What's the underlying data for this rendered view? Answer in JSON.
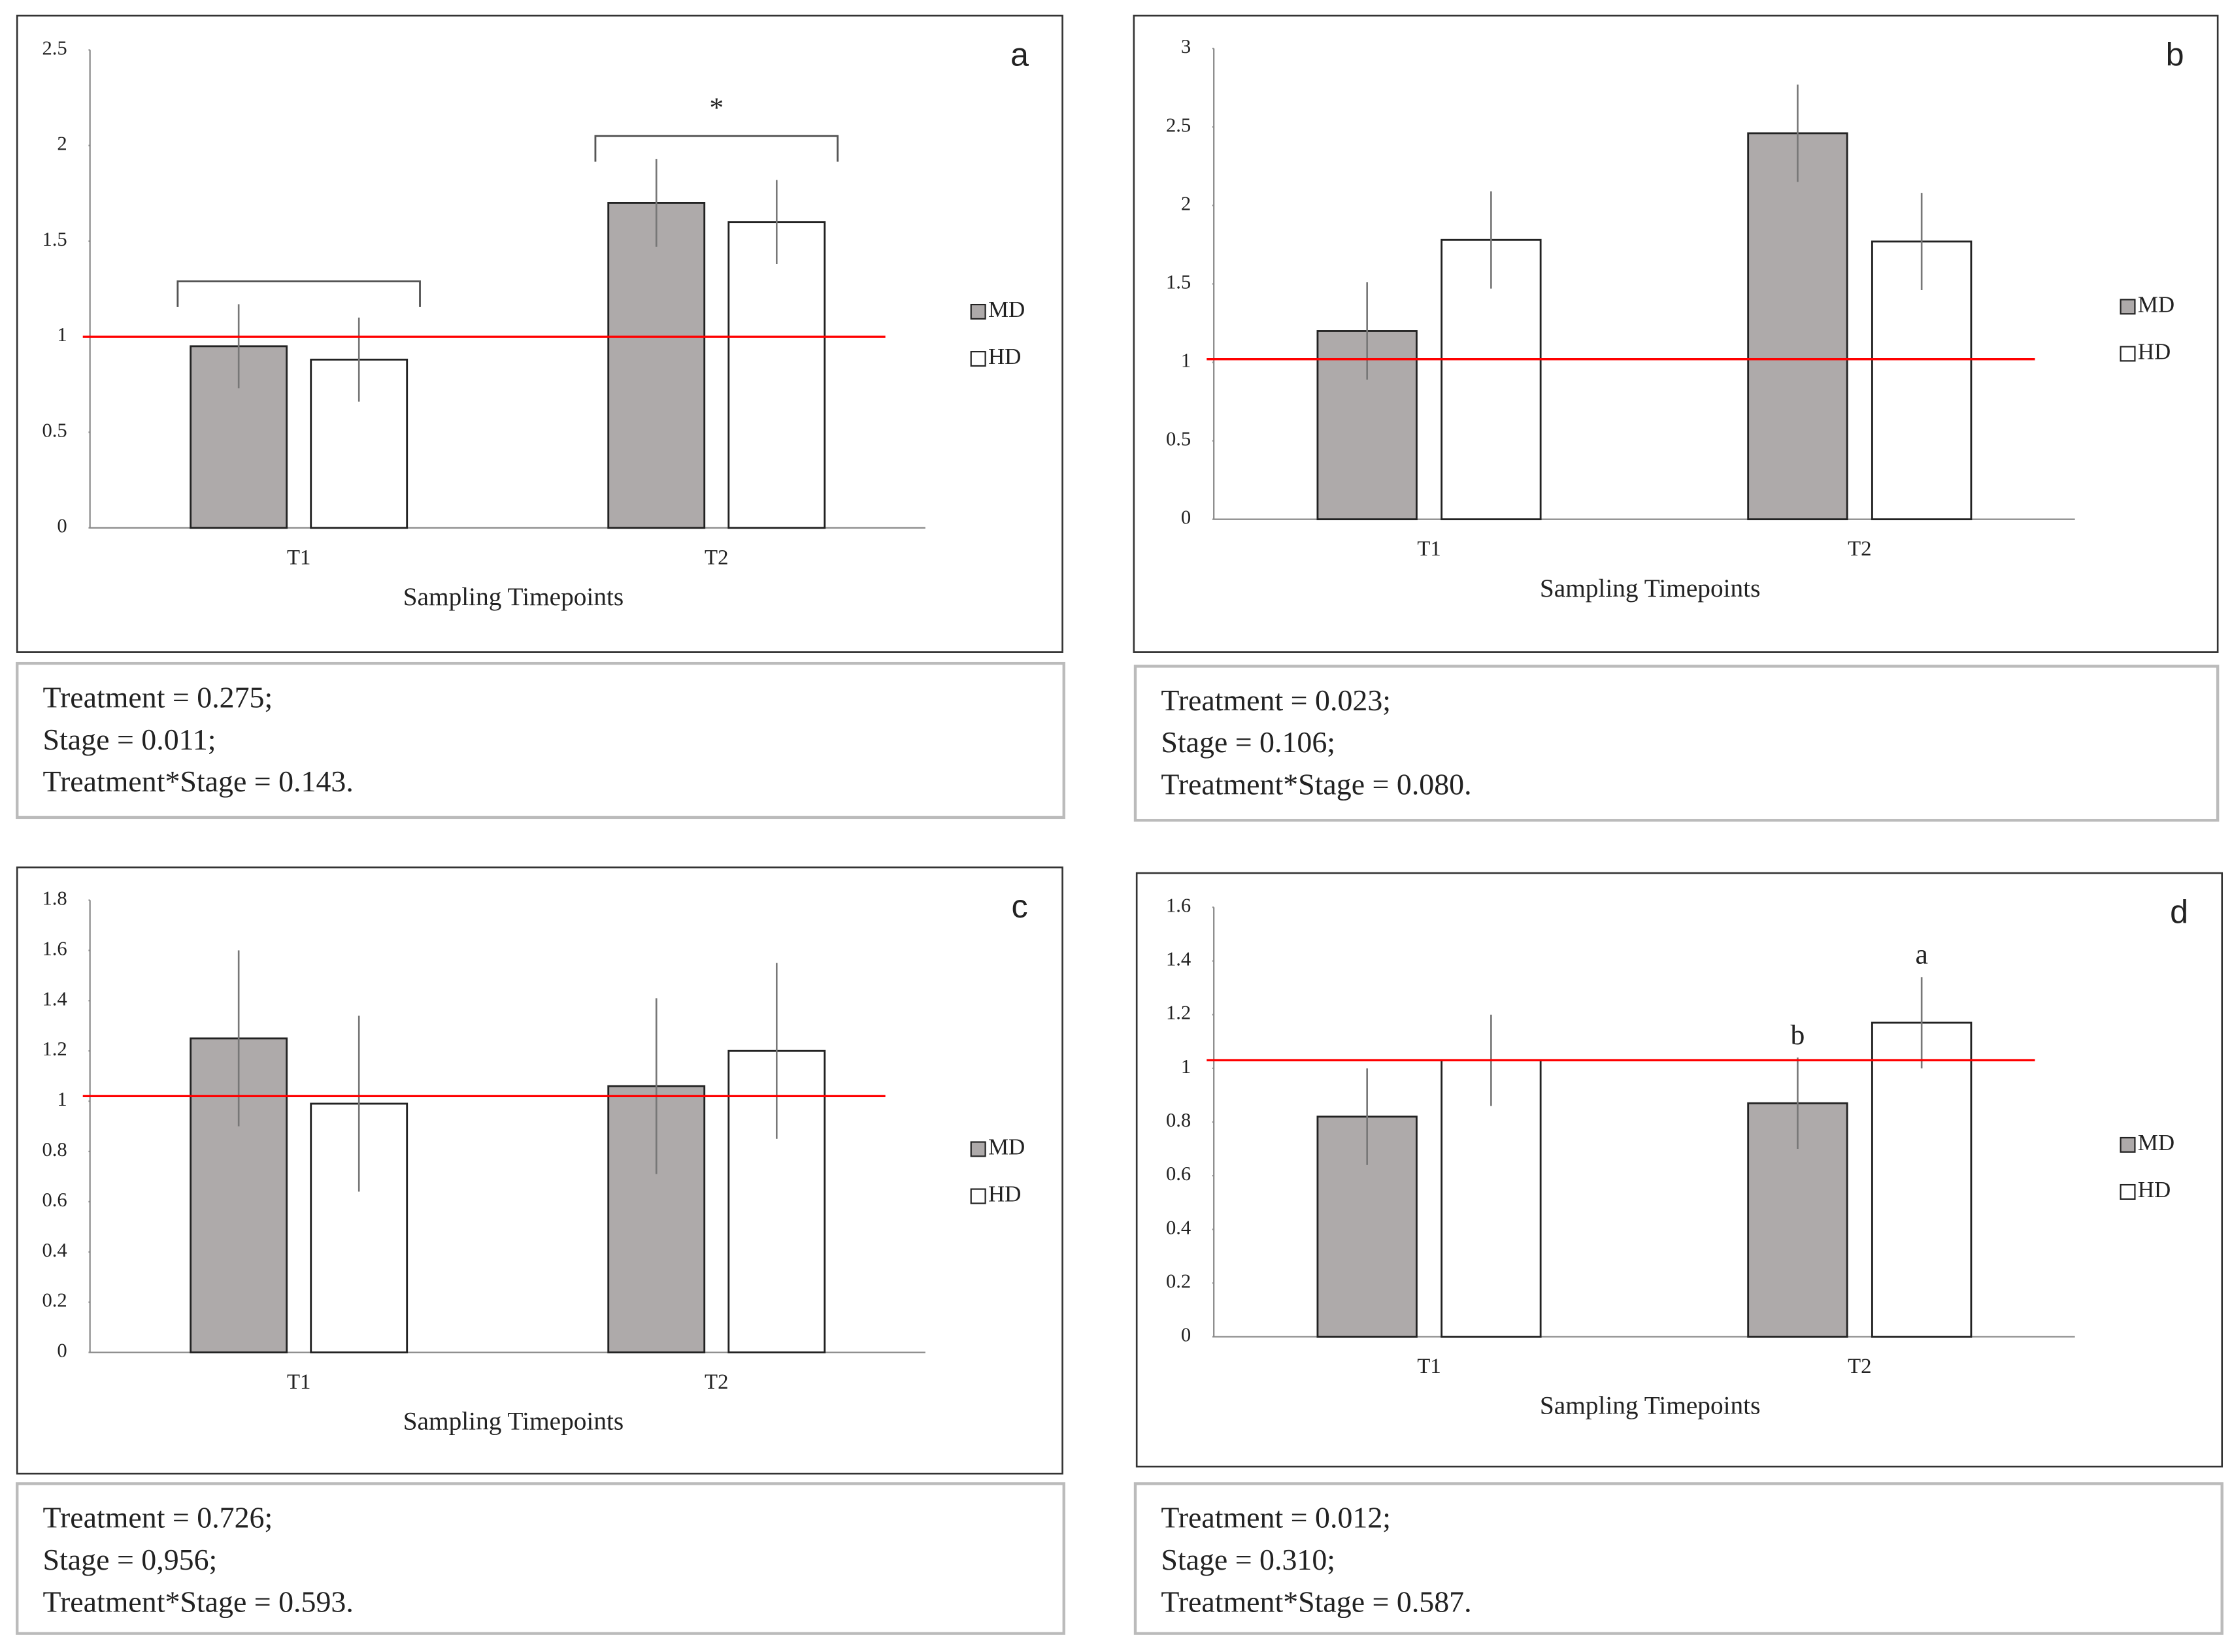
{
  "chart_data": [
    {
      "type": "bar",
      "panel_label": "a",
      "categories": [
        "T1",
        "T2"
      ],
      "xlabel": "Sampling Timepoints",
      "series": [
        {
          "name": "MD",
          "color": "#aeaaaa",
          "values": [
            0.95,
            1.7
          ],
          "errors": [
            0.22,
            0.23
          ]
        },
        {
          "name": "HD",
          "color": "#ffffff",
          "values": [
            0.88,
            1.6
          ],
          "errors": [
            0.22,
            0.22
          ]
        }
      ],
      "ylim": [
        0,
        2.5
      ],
      "yticks": [
        0,
        0.5,
        1,
        1.5,
        2,
        2.5
      ],
      "reference_line": {
        "value": 1,
        "color": "#ff0000"
      },
      "group_brackets": true,
      "annotations": [
        {
          "text": "*",
          "category": 1
        }
      ],
      "stats": [
        "Treatment = 0.275;",
        "Stage = 0.011;",
        "Treatment*Stage  = 0.143."
      ]
    },
    {
      "type": "bar",
      "panel_label": "b",
      "categories": [
        "T1",
        "T2"
      ],
      "xlabel": "Sampling Timepoints",
      "series": [
        {
          "name": "MD",
          "color": "#aeaaaa",
          "values": [
            1.2,
            2.46
          ],
          "errors": [
            0.31,
            0.31
          ]
        },
        {
          "name": "HD",
          "color": "#ffffff",
          "values": [
            1.78,
            1.77
          ],
          "errors": [
            0.31,
            0.31
          ]
        }
      ],
      "ylim": [
        0,
        3
      ],
      "yticks": [
        0,
        0.5,
        1,
        1.5,
        2,
        2.5,
        3
      ],
      "reference_line": {
        "value": 1.02,
        "color": "#ff0000"
      },
      "group_brackets": false,
      "annotations": [],
      "stats": [
        "Treatment = 0.023;",
        "Stage = 0.106;",
        "Treatment*Stage  = 0.080."
      ]
    },
    {
      "type": "bar",
      "panel_label": "c",
      "categories": [
        "T1",
        "T2"
      ],
      "xlabel": "Sampling Timepoints",
      "series": [
        {
          "name": "MD",
          "color": "#aeaaaa",
          "values": [
            1.25,
            1.06
          ],
          "errors": [
            0.35,
            0.35
          ]
        },
        {
          "name": "HD",
          "color": "#ffffff",
          "values": [
            0.99,
            1.2
          ],
          "errors": [
            0.35,
            0.35
          ]
        }
      ],
      "ylim": [
        0,
        1.8
      ],
      "yticks": [
        0,
        0.2,
        0.4,
        0.6,
        0.8,
        1,
        1.2,
        1.4,
        1.6,
        1.8
      ],
      "reference_line": {
        "value": 1.02,
        "color": "#ff0000"
      },
      "group_brackets": false,
      "annotations": [],
      "stats": [
        "Treatment = 0.726;",
        "Stage = 0,956;",
        "Treatment*Stage  = 0.593."
      ]
    },
    {
      "type": "bar",
      "panel_label": "d",
      "categories": [
        "T1",
        "T2"
      ],
      "xlabel": "Sampling Timepoints",
      "series": [
        {
          "name": "MD",
          "color": "#aeaaaa",
          "values": [
            0.82,
            0.87
          ],
          "errors": [
            0.18,
            0.17
          ]
        },
        {
          "name": "HD",
          "color": "#ffffff",
          "values": [
            1.03,
            1.17
          ],
          "errors": [
            0.17,
            0.17
          ]
        }
      ],
      "ylim": [
        0,
        1.6
      ],
      "yticks": [
        0,
        0.2,
        0.4,
        0.6,
        0.8,
        1,
        1.2,
        1.4,
        1.6
      ],
      "reference_line": {
        "value": 1.03,
        "color": "#ff0000"
      },
      "group_brackets": false,
      "annotations": [
        {
          "text": "b",
          "category": 1,
          "series": 0
        },
        {
          "text": "a",
          "category": 1,
          "series": 1
        }
      ],
      "stats": [
        "Treatment = 0.012;",
        "Stage = 0.310;",
        "Treatment*Stage  = 0.587."
      ]
    }
  ]
}
